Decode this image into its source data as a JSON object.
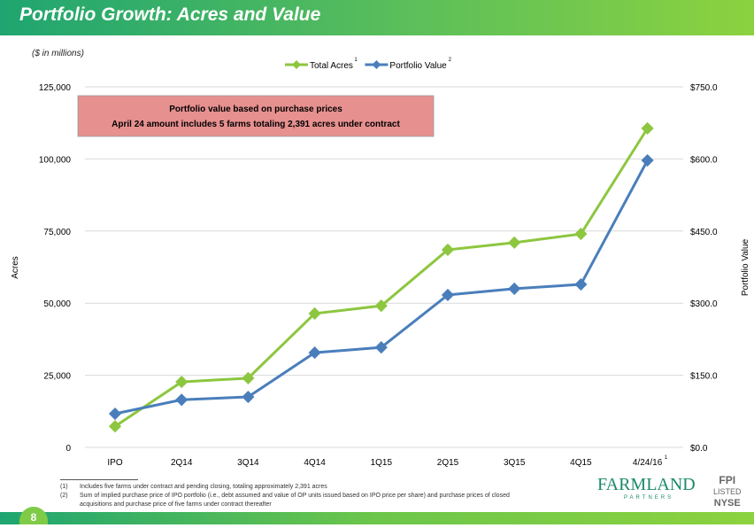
{
  "header": {
    "title": "Portfolio Growth: Acres and Value"
  },
  "units_note": "($ in millions)",
  "footnotes": [
    {
      "num": "(1)",
      "text": "Includes five farms under contract and pending closing, totaling approximately 2,391 acres"
    },
    {
      "num": "(2)",
      "text": "Sum of implied purchase price of IPO portfolio (i.e., debt assumed and value of OP units issued based on IPO price per share) and purchase prices of closed"
    },
    {
      "num": "",
      "text": "acquisitions and purchase price of five farms under contract thereafter"
    }
  ],
  "page_number": "8",
  "logo": {
    "name": "FARMLAND",
    "sub": "PARTNERS",
    "ticker": "FPI",
    "listed": "LISTED",
    "exchange": "NYSE"
  },
  "chart_data": {
    "type": "line",
    "categories": [
      "IPO",
      "2Q14",
      "3Q14",
      "4Q14",
      "1Q15",
      "2Q15",
      "3Q15",
      "4Q15",
      "4/24/16"
    ],
    "last_category_superscript": "1",
    "series": [
      {
        "name": "Total Acres",
        "superscript": "1",
        "axis": "left",
        "color": "#8dc63f",
        "values": [
          7300,
          22700,
          24000,
          46400,
          49100,
          68500,
          71000,
          74000,
          110600
        ]
      },
      {
        "name": "Portfolio Value",
        "superscript": "2",
        "axis": "right",
        "color": "#4a7ebb",
        "values": [
          70,
          99,
          105,
          197,
          208,
          317,
          330,
          339,
          597
        ]
      }
    ],
    "ylabel": "Acres",
    "y2label": "Portfolio Value",
    "ylim": [
      0,
      125000
    ],
    "y2lim": [
      0,
      750
    ],
    "yticks": [
      "0",
      "25,000",
      "50,000",
      "75,000",
      "100,000",
      "125,000"
    ],
    "y2ticks": [
      "$0.0",
      "$150.0",
      "$300.0",
      "$450.0",
      "$600.0",
      "$750.0"
    ],
    "grid": true,
    "legend": "top",
    "annotation": {
      "lines": [
        "Portfolio value based on purchase prices",
        "April 24 amount includes 5 farms totaling 2,391 acres under contract"
      ],
      "color": "#e6908f"
    }
  }
}
